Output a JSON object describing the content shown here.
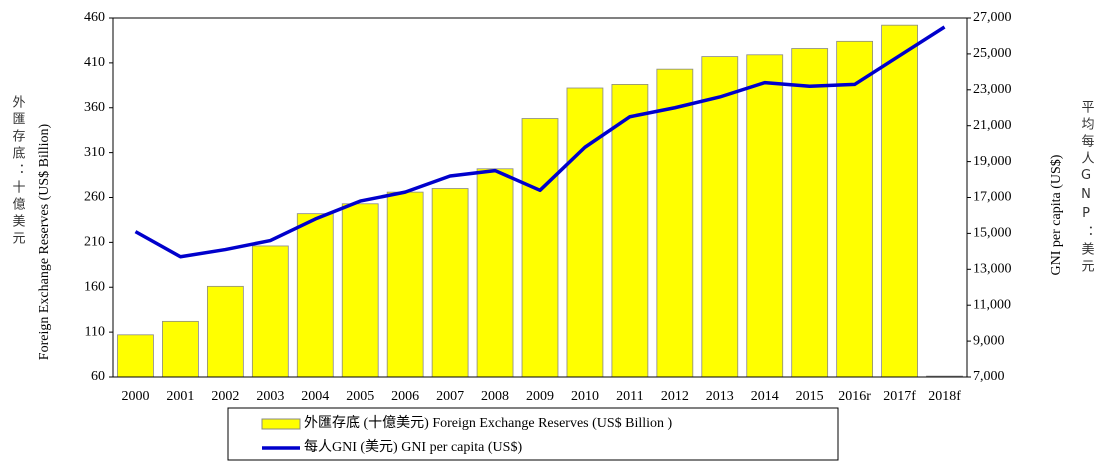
{
  "chart_data": {
    "type": "bar-line",
    "categories": [
      "2000",
      "2001",
      "2002",
      "2003",
      "2004",
      "2005",
      "2006",
      "2007",
      "2008",
      "2009",
      "2010",
      "2011",
      "2012",
      "2013",
      "2014",
      "2015",
      "2016r",
      "2017f",
      "2018f"
    ],
    "series": [
      {
        "name": "外匯存底 (十億美元) Foreign Exchange Reserves (US$ Billion )",
        "color": "#ffff00",
        "type": "bar",
        "values": [
          107,
          122,
          161,
          206,
          242,
          253,
          266,
          270,
          292,
          348,
          382,
          386,
          403,
          417,
          419,
          426,
          434,
          452,
          61
        ]
      },
      {
        "name": "每人GNI (美元) GNI per capita (US$)",
        "color": "#0000cc",
        "type": "line",
        "axis": "y2",
        "values": [
          15100,
          13700,
          14100,
          14600,
          15800,
          16800,
          17300,
          18200,
          18500,
          17400,
          19800,
          21500,
          22000,
          22600,
          23400,
          23200,
          23300,
          24900,
          26500
        ]
      }
    ],
    "y_label": "Foreign Exchange Reserves (US$ Billion)",
    "y_label_zh": "外匯存底：十億美元",
    "y2_label": "GNI per capita (US$)",
    "y2_label_zh": "平均每人GNP：美元",
    "ylim": [
      60,
      460
    ],
    "yticks": [
      60,
      110,
      160,
      210,
      260,
      310,
      360,
      410,
      460
    ],
    "y2lim": [
      7000,
      27000
    ],
    "y2ticks": [
      {
        "value": 7000,
        "label": "7,000"
      },
      {
        "value": 9000,
        "label": "9,000"
      },
      {
        "value": 11000,
        "label": "11,000"
      },
      {
        "value": 13000,
        "label": "13,000"
      },
      {
        "value": 15000,
        "label": "15,000"
      },
      {
        "value": 17000,
        "label": "17,000"
      },
      {
        "value": 19000,
        "label": "19,000"
      },
      {
        "value": 21000,
        "label": "21,000"
      },
      {
        "value": 23000,
        "label": "23,000"
      },
      {
        "value": 25000,
        "label": "25,000"
      },
      {
        "value": 27000,
        "label": "27,000"
      }
    ],
    "grid": false
  }
}
